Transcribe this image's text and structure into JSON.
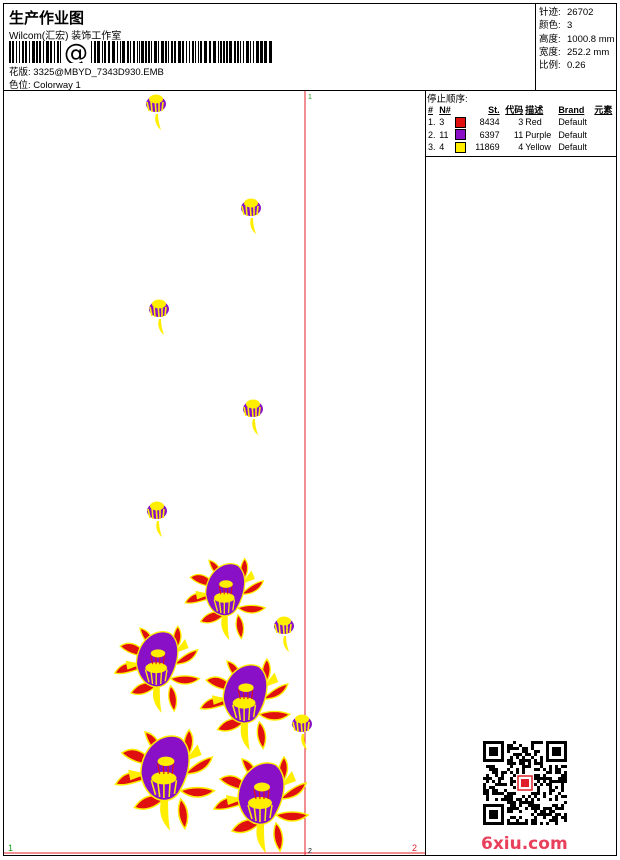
{
  "header": {
    "title": "生产作业图",
    "subtitle": "Wilcom(汇宏) 装饰工作室",
    "barcode_text": "@",
    "design_label": "花版:",
    "design_value": "3325@MBYD_7343D930.EMB",
    "colorway_label": "色位:",
    "colorway_value": "Colorway 1"
  },
  "stats": [
    {
      "label": "针迹:",
      "value": "26702"
    },
    {
      "label": "颜色:",
      "value": "3"
    },
    {
      "label": "高度:",
      "value": "1000.8 mm"
    },
    {
      "label": "宽度:",
      "value": "252.2 mm"
    },
    {
      "label": "比例:",
      "value": "0.26"
    }
  ],
  "stop_sequence": {
    "title": "停止顺序:",
    "columns": [
      "#",
      "N#",
      "St.",
      "代码",
      "描述",
      "Brand",
      "元素"
    ],
    "rows": [
      {
        "idx": "1.",
        "n": "3",
        "color": "#e01010",
        "st": "8434",
        "code": "3",
        "desc": "Red",
        "brand": "Default"
      },
      {
        "idx": "2.",
        "n": "11",
        "color": "#8a10c8",
        "st": "6397",
        "code": "11",
        "desc": "Purple",
        "brand": "Default"
      },
      {
        "idx": "3.",
        "n": "4",
        "color": "#ffee00",
        "st": "11869",
        "code": "4",
        "desc": "Yellow",
        "brand": "Default"
      }
    ]
  },
  "canvas": {
    "marker_left": "1",
    "marker_right": "2",
    "marker_top": "1",
    "marker_bottom": "2"
  },
  "colors": {
    "red": "#e01010",
    "purple": "#8a10c8",
    "yellow": "#ffee00",
    "guide": "#e0202a"
  },
  "watermark": {
    "text": "6xiu.com"
  }
}
